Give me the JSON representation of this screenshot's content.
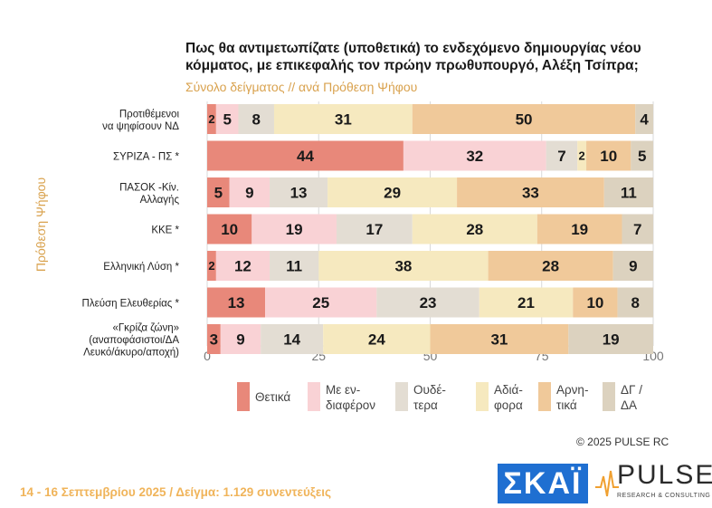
{
  "title_lines": [
    "Πως θα αντιμετωπίζατε (υποθετικά) το ενδεχόμενο δημιουργίας νέου",
    "κόμματος, με επικεφαλής τον πρώην πρωθυπουργό, Αλέξη Τσίπρα;"
  ],
  "subtitle": "Σύνολο δείγματος // ανά Πρόθεση Ψήφου",
  "y_axis_title": "Πρόθεση Ψήφου",
  "copyright": "©  2025  PULSE RC",
  "footer": "14 - 16 Σεπτεμβρίου 2025  /  Δείγμα:  1.129 συνεντεύξεις",
  "logos": {
    "skai": "ΣΚΑΪ",
    "pulse": "PULSE",
    "pulse_sub": "RESEARCH & CONSULTING"
  },
  "colors": {
    "thetika": "#e8887a",
    "me_endiaferon": "#f9d2d5",
    "oudetera": "#e3ddd3",
    "adiafora": "#f6e9bf",
    "arnitika": "#f0c99a",
    "dg_da": "#dcd2bf"
  },
  "legend": [
    {
      "lines": [
        "Θετικά"
      ],
      "color_key": "thetika"
    },
    {
      "lines": [
        "Με εν-",
        "διαφέρον"
      ],
      "color_key": "me_endiaferon"
    },
    {
      "lines": [
        "Ουδέ-",
        "τερα"
      ],
      "color_key": "oudetera"
    },
    {
      "lines": [
        "Αδιά-",
        "φορα"
      ],
      "color_key": "adiafora"
    },
    {
      "lines": [
        "Αρνη-",
        "τικά"
      ],
      "color_key": "arnitika"
    },
    {
      "lines": [
        "ΔΓ /",
        "ΔΑ"
      ],
      "color_key": "dg_da"
    }
  ],
  "chart_data": {
    "type": "bar",
    "orientation": "horizontal",
    "stacked": true,
    "xlim": [
      0,
      100
    ],
    "xticks": [
      0,
      25,
      50,
      75,
      100
    ],
    "categories": [
      [
        "Προτιθέμενοι",
        "να ψηφίσουν ΝΔ"
      ],
      [
        "ΣΥΡΙΖΑ - ΠΣ *"
      ],
      [
        "ΠΑΣΟΚ -Κίν.",
        "Αλλαγής"
      ],
      [
        "ΚΚΕ *"
      ],
      [
        "Ελληνική Λύση *"
      ],
      [
        "Πλεύση Ελευθερίας *"
      ],
      [
        "«Γκρίζα ζώνη»",
        "(αναποφάσιστοι/ΔΑ",
        "Λευκό/άκυρο/αποχή)"
      ]
    ],
    "series": [
      {
        "name": "Θετικά",
        "color_key": "thetika",
        "values": [
          2,
          44,
          5,
          10,
          2,
          13,
          3
        ]
      },
      {
        "name": "Με ενδιαφέρον",
        "color_key": "me_endiaferon",
        "values": [
          5,
          32,
          9,
          19,
          12,
          25,
          9
        ]
      },
      {
        "name": "Ουδέτερα",
        "color_key": "oudetera",
        "values": [
          8,
          7,
          13,
          17,
          11,
          23,
          14
        ]
      },
      {
        "name": "Αδιάφορα",
        "color_key": "adiafora",
        "values": [
          31,
          2,
          29,
          28,
          38,
          21,
          24
        ]
      },
      {
        "name": "Αρνητικά",
        "color_key": "arnitika",
        "values": [
          50,
          10,
          33,
          19,
          28,
          10,
          31
        ]
      },
      {
        "name": "ΔΓ / ΔΑ",
        "color_key": "dg_da",
        "values": [
          4,
          5,
          11,
          7,
          9,
          8,
          19
        ]
      }
    ]
  }
}
